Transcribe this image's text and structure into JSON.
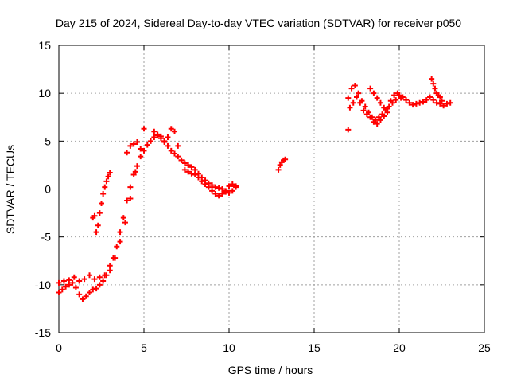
{
  "chart_data": {
    "type": "scatter",
    "title": "Day 215 of 2024, Sidereal Day-to-day VTEC variation (SDTVAR) for receiver p050",
    "xlabel": "GPS time / hours",
    "ylabel": "SDTVAR / TECUs",
    "xlim": [
      0,
      25
    ],
    "ylim": [
      -15,
      15
    ],
    "xticks": [
      "0",
      "5",
      "10",
      "15",
      "20",
      "25"
    ],
    "yticks": [
      "-15",
      "-10",
      "-5",
      "0",
      "5",
      "10",
      "15"
    ],
    "grid": true,
    "marker": "+",
    "color": "#ff0000",
    "series": [
      {
        "x": [
          0.0,
          0.2,
          0.4,
          0.6,
          0.8,
          1.0,
          1.2,
          1.4,
          1.6,
          1.8,
          2.0,
          2.2,
          2.4,
          2.6,
          2.8,
          3.0,
          3.2,
          3.4,
          3.6,
          3.8,
          4.0,
          4.2,
          4.4,
          4.6,
          4.8,
          5.0,
          5.2,
          5.4,
          5.6,
          5.8,
          6.0,
          6.2,
          6.4,
          6.6,
          6.8,
          7.0,
          7.2,
          7.4,
          7.6,
          7.8,
          8.0,
          8.2,
          8.4,
          8.6,
          8.8,
          9.0,
          9.2,
          9.4,
          9.6,
          9.8,
          10.0,
          10.2,
          10.4
        ],
        "y": [
          -10.8,
          -10.5,
          -10.2,
          -10.0,
          -9.8,
          -10.3,
          -11.0,
          -11.5,
          -11.2,
          -10.8,
          -10.5,
          -10.4,
          -10.0,
          -9.6,
          -9.0,
          -8.0,
          -7.2,
          -6.0,
          -4.5,
          -3.0,
          -1.2,
          0.2,
          1.5,
          2.4,
          3.4,
          4.0,
          4.6,
          5.0,
          5.4,
          5.6,
          5.3,
          4.9,
          4.5,
          4.0,
          3.7,
          3.4,
          3.0,
          2.7,
          2.5,
          2.3,
          2.0,
          1.6,
          1.2,
          0.9,
          0.6,
          0.4,
          0.2,
          0.1,
          0.0,
          -0.2,
          -0.4,
          -0.2,
          0.2
        ]
      },
      {
        "x": [
          0.0,
          0.3,
          0.6,
          0.9,
          1.2,
          1.5,
          1.8,
          2.1,
          2.4,
          2.7,
          3.0,
          3.3,
          3.6,
          3.9,
          4.2,
          4.5,
          4.8,
          5.0
        ],
        "y": [
          -9.8,
          -9.6,
          -9.5,
          -9.2,
          -9.6,
          -9.4,
          -9.0,
          -9.4,
          -9.2,
          -9.0,
          -8.5,
          -7.2,
          -5.5,
          -3.5,
          -1.0,
          1.8,
          4.2,
          6.3
        ]
      },
      {
        "x": [
          2.0,
          2.1,
          2.2,
          2.3,
          2.4,
          2.5,
          2.6,
          2.7,
          2.8,
          2.9,
          3.0
        ],
        "y": [
          -3.0,
          -2.8,
          -4.5,
          -3.8,
          -2.5,
          -1.5,
          -0.5,
          0.2,
          0.8,
          1.3,
          1.7
        ]
      },
      {
        "x": [
          5.6,
          5.8,
          6.0,
          6.2,
          6.4,
          6.6,
          6.8,
          7.0,
          7.2
        ],
        "y": [
          6.0,
          5.7,
          5.5,
          5.0,
          5.4,
          6.3,
          6.0,
          4.5,
          3.0
        ]
      },
      {
        "x": [
          7.4,
          7.6,
          7.8,
          8.0,
          8.2,
          8.4,
          8.6,
          8.8,
          9.0,
          9.2,
          9.4,
          9.6,
          9.8,
          10.0,
          10.2,
          10.4
        ],
        "y": [
          2.0,
          1.8,
          1.6,
          1.5,
          1.2,
          0.8,
          0.5,
          0.2,
          -0.2,
          -0.5,
          -0.7,
          -0.5,
          -0.3,
          0.3,
          0.5,
          0.3
        ]
      },
      {
        "x": [
          12.9,
          13.0,
          13.1,
          13.2,
          13.3
        ],
        "y": [
          2.0,
          2.5,
          2.8,
          3.0,
          3.1
        ]
      },
      {
        "x": [
          17.0,
          17.2,
          17.4,
          17.6,
          17.8,
          18.0,
          18.2,
          18.4,
          18.6,
          18.8,
          19.0,
          19.2,
          19.4,
          19.6,
          19.8,
          20.0,
          20.2,
          20.4,
          20.6,
          20.8,
          21.0,
          21.2,
          21.4,
          21.6,
          21.8,
          22.0,
          22.2,
          22.4,
          22.6,
          22.8,
          23.0
        ],
        "y": [
          9.5,
          10.5,
          10.8,
          10.0,
          9.2,
          8.6,
          8.0,
          7.5,
          7.2,
          7.5,
          7.8,
          8.3,
          8.6,
          9.0,
          9.3,
          9.8,
          9.6,
          9.3,
          9.0,
          8.8,
          8.9,
          9.0,
          9.1,
          9.3,
          9.6,
          9.3,
          9.0,
          8.9,
          8.7,
          8.9,
          9.0
        ]
      },
      {
        "x": [
          17.1,
          17.3,
          17.5,
          17.7,
          17.9,
          18.1,
          18.3,
          18.5,
          18.7,
          18.9,
          19.1,
          19.3,
          19.5,
          19.7,
          19.9,
          20.1
        ],
        "y": [
          8.5,
          9.0,
          9.6,
          9.0,
          8.2,
          7.8,
          7.5,
          7.0,
          6.8,
          7.2,
          7.6,
          8.4,
          9.2,
          9.8,
          10.0,
          9.5
        ]
      },
      {
        "x": [
          18.3,
          18.5,
          18.7,
          18.9,
          19.1,
          19.3
        ],
        "y": [
          10.5,
          10.0,
          9.5,
          9.0,
          8.5,
          8.0
        ]
      },
      {
        "x": [
          21.9,
          22.0,
          22.1,
          22.2,
          22.3,
          22.4,
          22.5
        ],
        "y": [
          11.5,
          11.0,
          10.5,
          10.0,
          9.8,
          9.6,
          9.2
        ]
      },
      {
        "x": [
          17.0
        ],
        "y": [
          6.2
        ]
      },
      {
        "x": [
          4.0,
          4.2,
          4.4,
          4.6
        ],
        "y": [
          3.8,
          4.5,
          4.7,
          4.9
        ]
      }
    ]
  }
}
